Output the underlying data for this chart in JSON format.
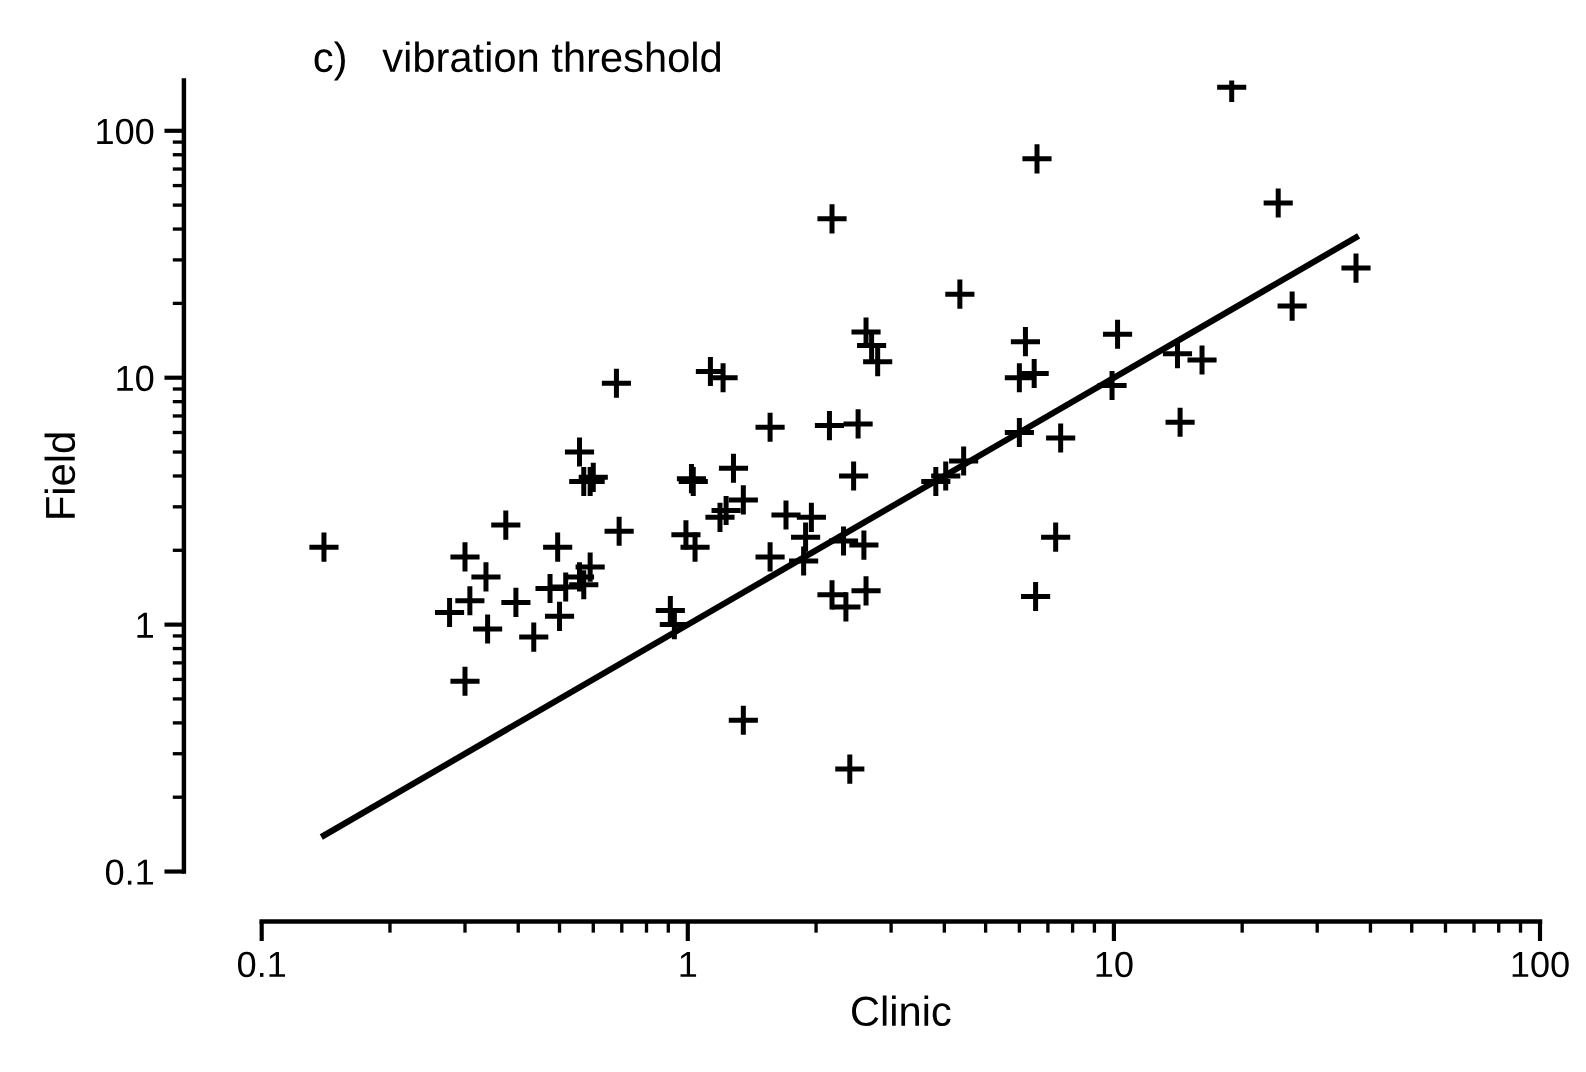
{
  "chart_data": {
    "type": "scatter",
    "title": "c)   vibration threshold",
    "xlabel": "Clinic",
    "ylabel": "Field",
    "log": "xy",
    "xlim": [
      0.1,
      100
    ],
    "ylim": [
      0.1,
      160
    ],
    "xticks": [
      0.1,
      1,
      10,
      100
    ],
    "yticks": [
      0.1,
      1,
      10,
      100
    ],
    "grid": false,
    "marker": "cross",
    "series": [
      {
        "color": "#000000",
        "x": [
          0.14,
          0.374,
          0.3,
          0.336,
          0.308,
          0.276,
          0.339,
          0.3,
          0.395,
          0.435,
          0.495,
          0.5,
          0.475,
          0.517,
          0.57,
          0.59,
          0.557,
          0.59,
          0.57,
          0.557,
          0.69,
          1.03,
          0.99,
          1.04,
          0.91,
          0.93,
          0.68,
          0.6,
          2.62,
          2.79,
          2.7,
          1.13,
          1.21,
          1.56,
          2.15,
          2.51,
          1.02,
          1.28,
          1.35,
          1.23,
          1.19,
          1.7,
          1.95,
          1.89,
          1.56,
          1.87,
          2.45,
          2.32,
          2.59,
          2.18,
          2.35,
          2.62,
          1.35,
          2.4,
          3.82,
          4.03,
          4.44,
          6.2,
          6.0,
          6.5,
          10.2,
          9.9,
          6.0,
          7.5,
          7.3,
          6.55,
          6.6,
          2.18,
          4.35,
          18.9,
          24.3,
          37,
          26.2,
          14.1,
          16.1,
          14.3
        ],
        "values": [
          2.06,
          2.53,
          1.88,
          1.56,
          1.25,
          1.12,
          0.96,
          0.59,
          1.23,
          0.89,
          2.06,
          1.08,
          1.4,
          1.42,
          1.45,
          1.71,
          1.56,
          3.8,
          3.8,
          5.0,
          2.39,
          3.8,
          2.31,
          2.06,
          1.14,
          1.0,
          9.5,
          3.95,
          15.3,
          11.6,
          13.5,
          10.6,
          10.0,
          6.3,
          6.4,
          6.5,
          3.9,
          4.3,
          3.2,
          2.9,
          2.72,
          2.78,
          2.72,
          2.26,
          1.88,
          1.81,
          4.0,
          2.18,
          2.1,
          1.32,
          1.18,
          1.37,
          0.41,
          0.26,
          3.8,
          4.0,
          4.6,
          14.0,
          10.0,
          10.4,
          15.0,
          9.3,
          6.0,
          5.7,
          2.26,
          1.3,
          77,
          44,
          21.8,
          150,
          51,
          27.8,
          19.5,
          12.5,
          11.8,
          6.6
        ]
      },
      {
        "type": "line",
        "color": "#000000",
        "x": [
          0.14,
          37
        ],
        "values": [
          0.14,
          37
        ],
        "marker": "none",
        "line_style": "solid"
      }
    ]
  }
}
